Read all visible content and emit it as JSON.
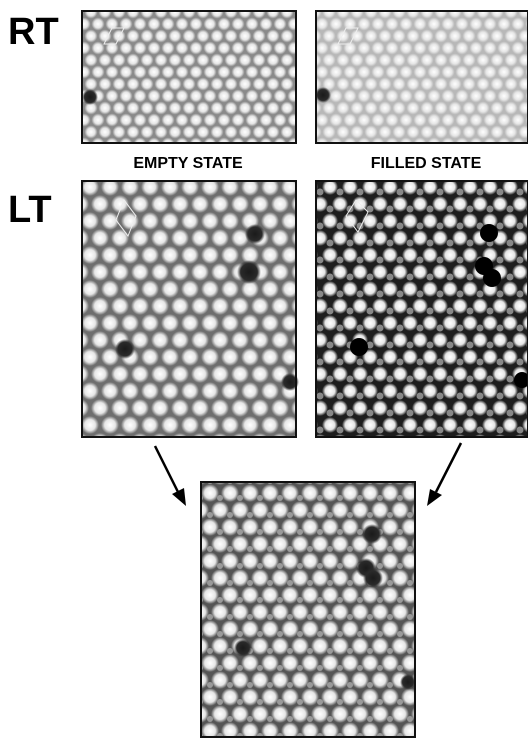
{
  "labels": {
    "rt": "RT",
    "lt": "LT",
    "empty_state": "EMPTY STATE",
    "filled_state": "FILLED STATE"
  }
}
